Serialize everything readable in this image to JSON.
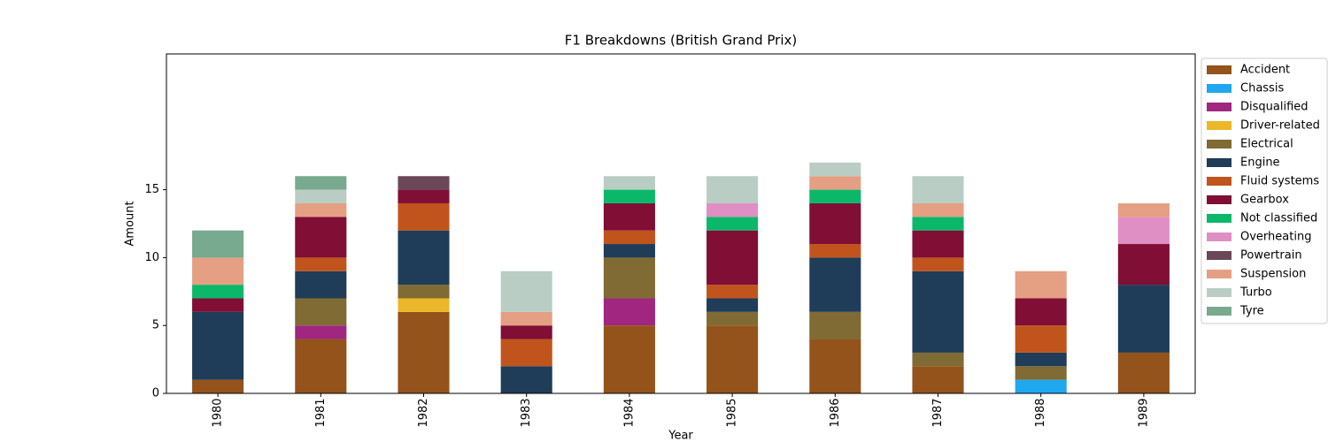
{
  "chart_data": {
    "type": "stacked_bar",
    "title": "F1 Breakdowns (British Grand Prix)",
    "x_label": "Year",
    "y_label": "Amount",
    "categories": [
      "1980",
      "1981",
      "1982",
      "1983",
      "1984",
      "1985",
      "1986",
      "1987",
      "1988",
      "1989"
    ],
    "series": [
      {
        "name": "Accident",
        "color": "#93531a",
        "values": [
          1,
          4,
          6,
          0,
          5,
          5,
          4,
          2,
          0,
          3
        ]
      },
      {
        "name": "Chassis",
        "color": "#1fa8f0",
        "values": [
          0,
          0,
          0,
          0,
          0,
          0,
          0,
          0,
          1,
          0
        ]
      },
      {
        "name": "Disqualified",
        "color": "#a0267f",
        "values": [
          0,
          1,
          0,
          0,
          2,
          0,
          0,
          0,
          0,
          0
        ]
      },
      {
        "name": "Driver-related",
        "color": "#eab828",
        "values": [
          0,
          0,
          1,
          0,
          0,
          0,
          0,
          0,
          0,
          0
        ]
      },
      {
        "name": "Electrical",
        "color": "#7f6b33",
        "values": [
          0,
          2,
          1,
          0,
          3,
          1,
          2,
          1,
          1,
          0
        ]
      },
      {
        "name": "Engine",
        "color": "#1f3c58",
        "values": [
          5,
          2,
          4,
          2,
          1,
          1,
          4,
          6,
          1,
          5
        ]
      },
      {
        "name": "Fluid systems",
        "color": "#c1541c",
        "values": [
          0,
          1,
          2,
          2,
          1,
          1,
          1,
          1,
          2,
          0
        ]
      },
      {
        "name": "Gearbox",
        "color": "#800e35",
        "values": [
          1,
          3,
          1,
          1,
          2,
          4,
          3,
          2,
          2,
          3
        ]
      },
      {
        "name": "Not classified",
        "color": "#0bb86a",
        "values": [
          1,
          0,
          0,
          0,
          1,
          1,
          1,
          1,
          0,
          0
        ]
      },
      {
        "name": "Overheating",
        "color": "#e08fc4",
        "values": [
          0,
          0,
          0,
          0,
          0,
          1,
          0,
          0,
          0,
          2
        ]
      },
      {
        "name": "Powertrain",
        "color": "#6a4858",
        "values": [
          0,
          0,
          1,
          0,
          0,
          0,
          0,
          0,
          0,
          0
        ]
      },
      {
        "name": "Suspension",
        "color": "#e59f82",
        "values": [
          2,
          1,
          0,
          1,
          0,
          0,
          1,
          1,
          2,
          1
        ]
      },
      {
        "name": "Turbo",
        "color": "#b9cdc5",
        "values": [
          0,
          1,
          0,
          3,
          1,
          2,
          1,
          2,
          0,
          0
        ]
      },
      {
        "name": "Tyre",
        "color": "#77aa8e",
        "values": [
          2,
          1,
          0,
          0,
          0,
          0,
          0,
          0,
          0,
          0
        ]
      }
    ],
    "ylim": [
      0,
      25
    ],
    "yticks": [
      0,
      5,
      10,
      15
    ],
    "legend": "outside right"
  }
}
